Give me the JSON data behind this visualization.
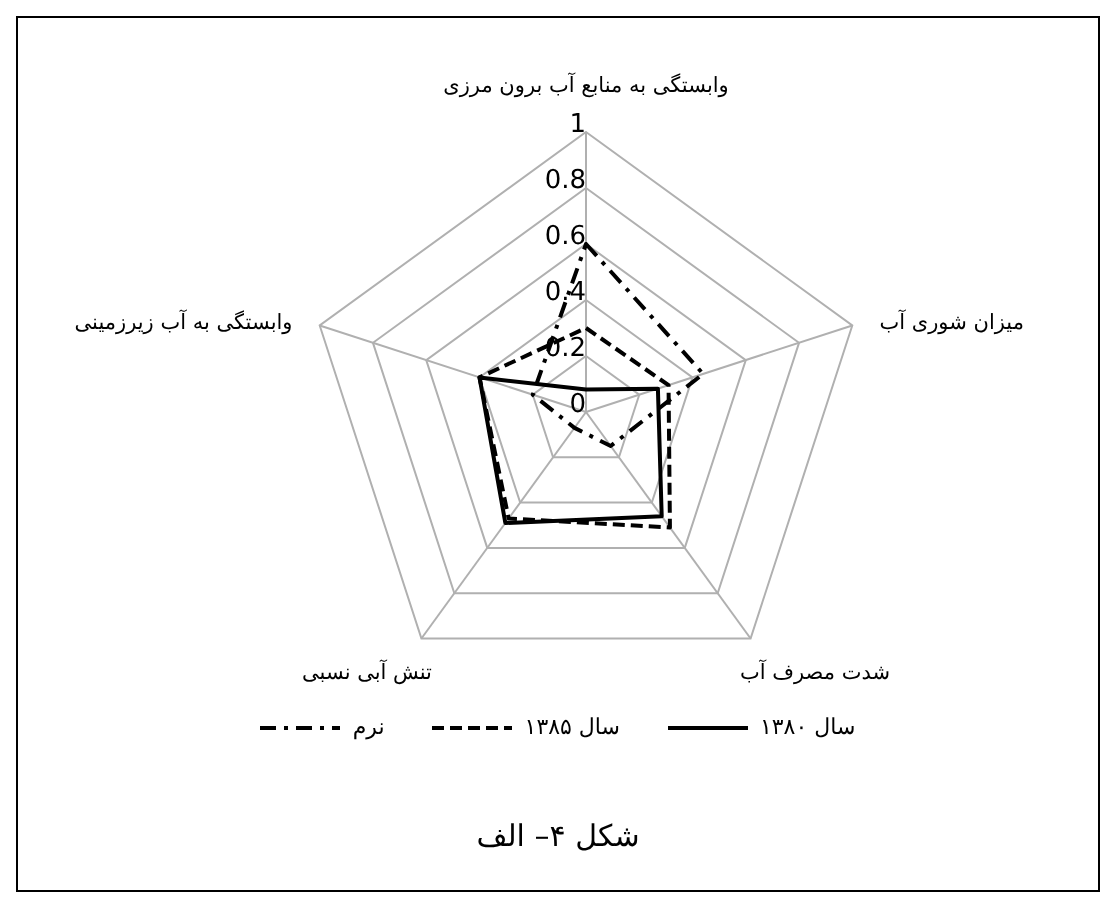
{
  "chart_data": {
    "type": "radar",
    "title": "شکل ۴– الف",
    "categories": [
      "وابستگی به منابع آب برون مرزی",
      "میزان شوری آب",
      "شدت مصرف آب",
      "تنش آبی نسبی",
      "وابستگی به آب زیرزمینی"
    ],
    "series": [
      {
        "name": "سال ۱۳۸۰",
        "color": "#000000",
        "line_style": "solid",
        "values": [
          0.08,
          0.27,
          0.46,
          0.49,
          0.4
        ]
      },
      {
        "name": "سال ۱۳۸۵",
        "color": "#000000",
        "line_style": "dashed",
        "values": [
          0.3,
          0.31,
          0.51,
          0.47,
          0.4
        ]
      },
      {
        "name": "نرم",
        "color": "#000000",
        "line_style": "dashdot",
        "values": [
          0.6,
          0.44,
          0.15,
          0.07,
          0.2
        ]
      }
    ],
    "ylim": [
      0,
      1
    ],
    "yticks": [
      0,
      0.2,
      0.4,
      0.6,
      0.8,
      1
    ],
    "grid": true,
    "legend": "bottom",
    "marker": "none"
  }
}
